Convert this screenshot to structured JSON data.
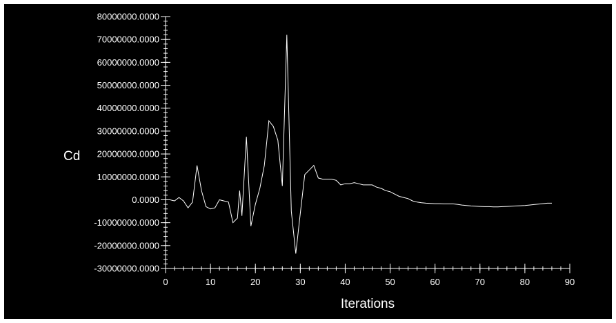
{
  "chart_data": {
    "type": "line",
    "title": "",
    "xlabel": "Iterations",
    "ylabel": "Cd",
    "xlim": [
      0,
      90
    ],
    "ylim": [
      -30000000,
      80000000
    ],
    "x_ticks": [
      {
        "value": 0,
        "label": "0"
      },
      {
        "value": 10,
        "label": "10"
      },
      {
        "value": 20,
        "label": "20"
      },
      {
        "value": 30,
        "label": "30"
      },
      {
        "value": 40,
        "label": "40"
      },
      {
        "value": 50,
        "label": "50"
      },
      {
        "value": 60,
        "label": "60"
      },
      {
        "value": 70,
        "label": "70"
      },
      {
        "value": 80,
        "label": "80"
      },
      {
        "value": 90,
        "label": "90"
      }
    ],
    "y_ticks": [
      {
        "value": 80000000,
        "label": "80000000.0000"
      },
      {
        "value": 70000000,
        "label": "70000000.0000"
      },
      {
        "value": 60000000,
        "label": "60000000.0000"
      },
      {
        "value": 50000000,
        "label": "50000000.0000"
      },
      {
        "value": 40000000,
        "label": "40000000.0000"
      },
      {
        "value": 30000000,
        "label": "30000000.0000"
      },
      {
        "value": 20000000,
        "label": "20000000.0000"
      },
      {
        "value": 10000000,
        "label": "10000000.0000"
      },
      {
        "value": 0,
        "label": "0.0000"
      },
      {
        "value": -10000000,
        "label": "-10000000.0000"
      },
      {
        "value": -20000000,
        "label": "-20000000.0000"
      },
      {
        "value": -30000000,
        "label": "-30000000.0000"
      }
    ],
    "grid": false,
    "background_color": "#000000",
    "line_color": "#ffffff",
    "series": [
      {
        "x": [
          1,
          2,
          3,
          4,
          5,
          6,
          7,
          8,
          9,
          10,
          11,
          12,
          13,
          14,
          15,
          16,
          16.5,
          17,
          18,
          19,
          20,
          21,
          22,
          23,
          24,
          25,
          26,
          27,
          28,
          29,
          30,
          31,
          32,
          33,
          34,
          35,
          36,
          37,
          38,
          39,
          40,
          41,
          42,
          43,
          44,
          45,
          46,
          47,
          48,
          49,
          50,
          51,
          52,
          53,
          54,
          55,
          56,
          57,
          58,
          59,
          60,
          61,
          62,
          63,
          64,
          65,
          66,
          67,
          68,
          69,
          70,
          71,
          72,
          73,
          74,
          75,
          76,
          77,
          78,
          79,
          80,
          81,
          82,
          83,
          84,
          85,
          86
        ],
        "values": [
          0,
          -500000,
          1000000,
          -500000,
          -3500000,
          -1000000,
          15000000,
          4000000,
          -3000000,
          -4000000,
          -3500000,
          0,
          -500000,
          -1000000,
          -10000000,
          -8000000,
          4000000,
          -7000000,
          27500000,
          -11500000,
          -2000000,
          5000000,
          15000000,
          34500000,
          32000000,
          26000000,
          6000000,
          72000000,
          -5000000,
          -23500000,
          -6000000,
          11000000,
          13000000,
          15000000,
          9500000,
          9000000,
          9000000,
          9000000,
          8500000,
          6500000,
          7000000,
          7000000,
          7500000,
          7000000,
          6500000,
          6500000,
          6500000,
          5500000,
          5000000,
          4000000,
          3500000,
          2500000,
          1500000,
          1000000,
          500000,
          -500000,
          -1000000,
          -1300000,
          -1500000,
          -1600000,
          -1700000,
          -1700000,
          -1800000,
          -1800000,
          -1800000,
          -2000000,
          -2300000,
          -2500000,
          -2700000,
          -2800000,
          -2900000,
          -3000000,
          -3000000,
          -3100000,
          -3100000,
          -3000000,
          -2900000,
          -2800000,
          -2700000,
          -2600000,
          -2500000,
          -2300000,
          -2100000,
          -1900000,
          -1700000,
          -1500000,
          -1500000
        ]
      }
    ]
  }
}
